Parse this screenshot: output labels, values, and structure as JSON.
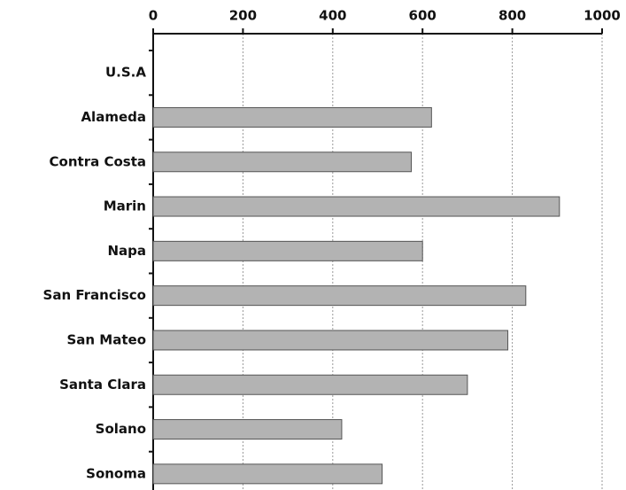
{
  "chart_data": {
    "type": "bar",
    "orientation": "horizontal",
    "categories": [
      "U.S.A",
      "Alameda",
      "Contra Costa",
      "Marin",
      "Napa",
      "San Francisco",
      "San Mateo",
      "Santa Clara",
      "Solano",
      "Sonoma"
    ],
    "values": [
      null,
      620,
      575,
      905,
      600,
      830,
      790,
      700,
      420,
      510
    ],
    "color": "#b3b3b3",
    "xlim": [
      0,
      1000
    ],
    "xticks": [
      0,
      200,
      400,
      600,
      800,
      1000
    ],
    "grid": true
  }
}
